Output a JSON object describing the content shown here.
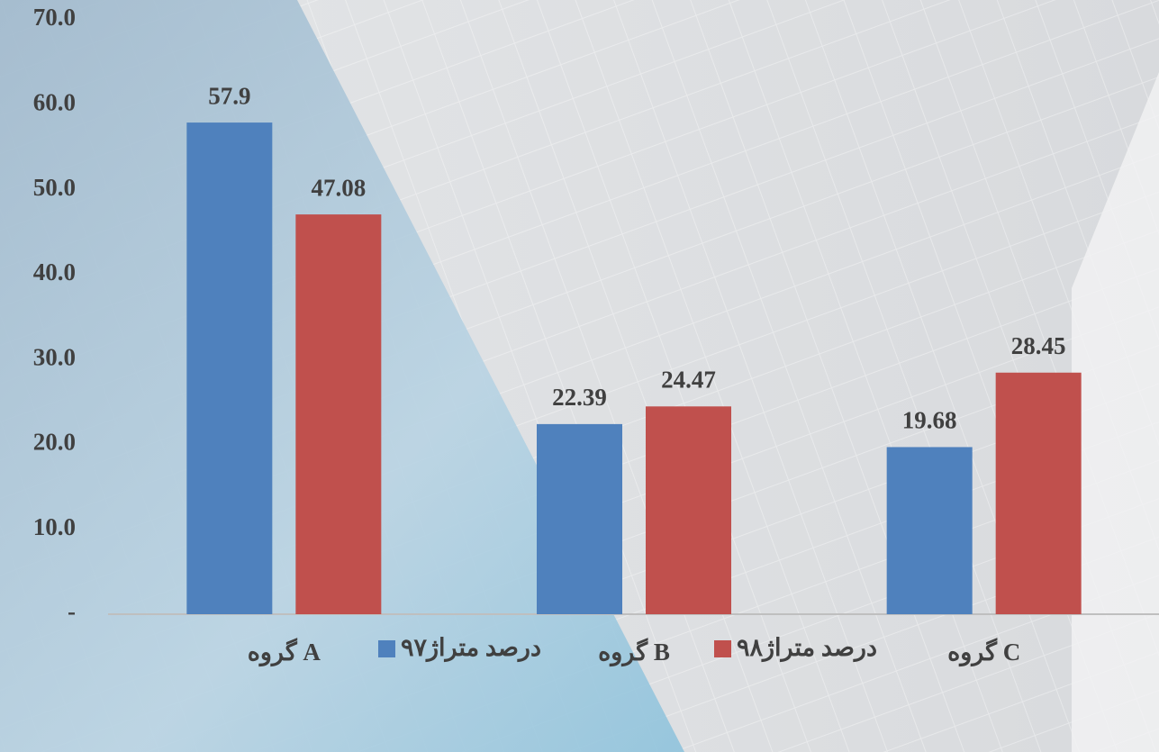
{
  "chart_data": {
    "type": "bar",
    "categories": [
      "گروه A",
      "گروه B",
      "گروه C"
    ],
    "series": [
      {
        "name": "درصد متراژ۹۷",
        "color": "#4f81bd",
        "values": [
          57.9,
          22.39,
          19.68
        ]
      },
      {
        "name": "درصد متراژ۹۸",
        "color": "#c0504d",
        "values": [
          47.08,
          24.47,
          28.45
        ]
      }
    ],
    "ylim": [
      0,
      70
    ],
    "yticks": [
      {
        "value": 0,
        "label": "-"
      },
      {
        "value": 10,
        "label": "10.0"
      },
      {
        "value": 20,
        "label": "20.0"
      },
      {
        "value": 30,
        "label": "30.0"
      },
      {
        "value": 40,
        "label": "40.0"
      },
      {
        "value": 50,
        "label": "50.0"
      },
      {
        "value": 60,
        "label": "60.0"
      },
      {
        "value": 70,
        "label": "70.0"
      }
    ],
    "grid": false,
    "legend": "bottom"
  }
}
